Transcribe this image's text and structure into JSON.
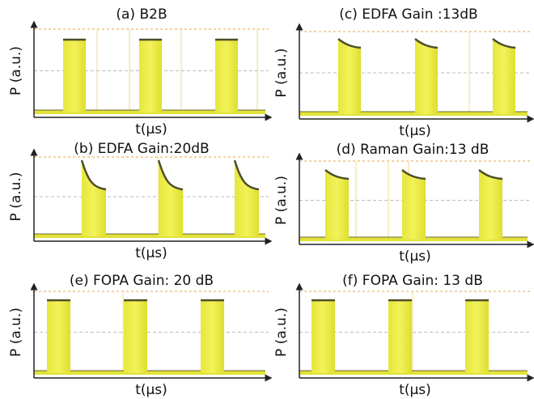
{
  "panels": [
    {
      "title": "(a) B2B",
      "ylabel": "P (a.u.)",
      "xlabel": "t(μs)"
    },
    {
      "title": "(c) EDFA Gain :13dB",
      "ylabel": "P (a.u.)",
      "xlabel": "t(μs)"
    },
    {
      "title": "(b) EDFA Gain:20dB",
      "ylabel": "P (a.u.)",
      "xlabel": "t(μs)"
    },
    {
      "title": "(d) Raman Gain:13 dB",
      "ylabel": "P (a.u.)",
      "xlabel": "t(μs)"
    },
    {
      "title": "(e) FOPA Gain: 20 dB",
      "ylabel": "P (a.u.)",
      "xlabel": "t(μs)"
    },
    {
      "title": "(f) FOPA Gain: 13 dB",
      "ylabel": "P (a.u.)",
      "xlabel": "t(μs)"
    }
  ]
}
